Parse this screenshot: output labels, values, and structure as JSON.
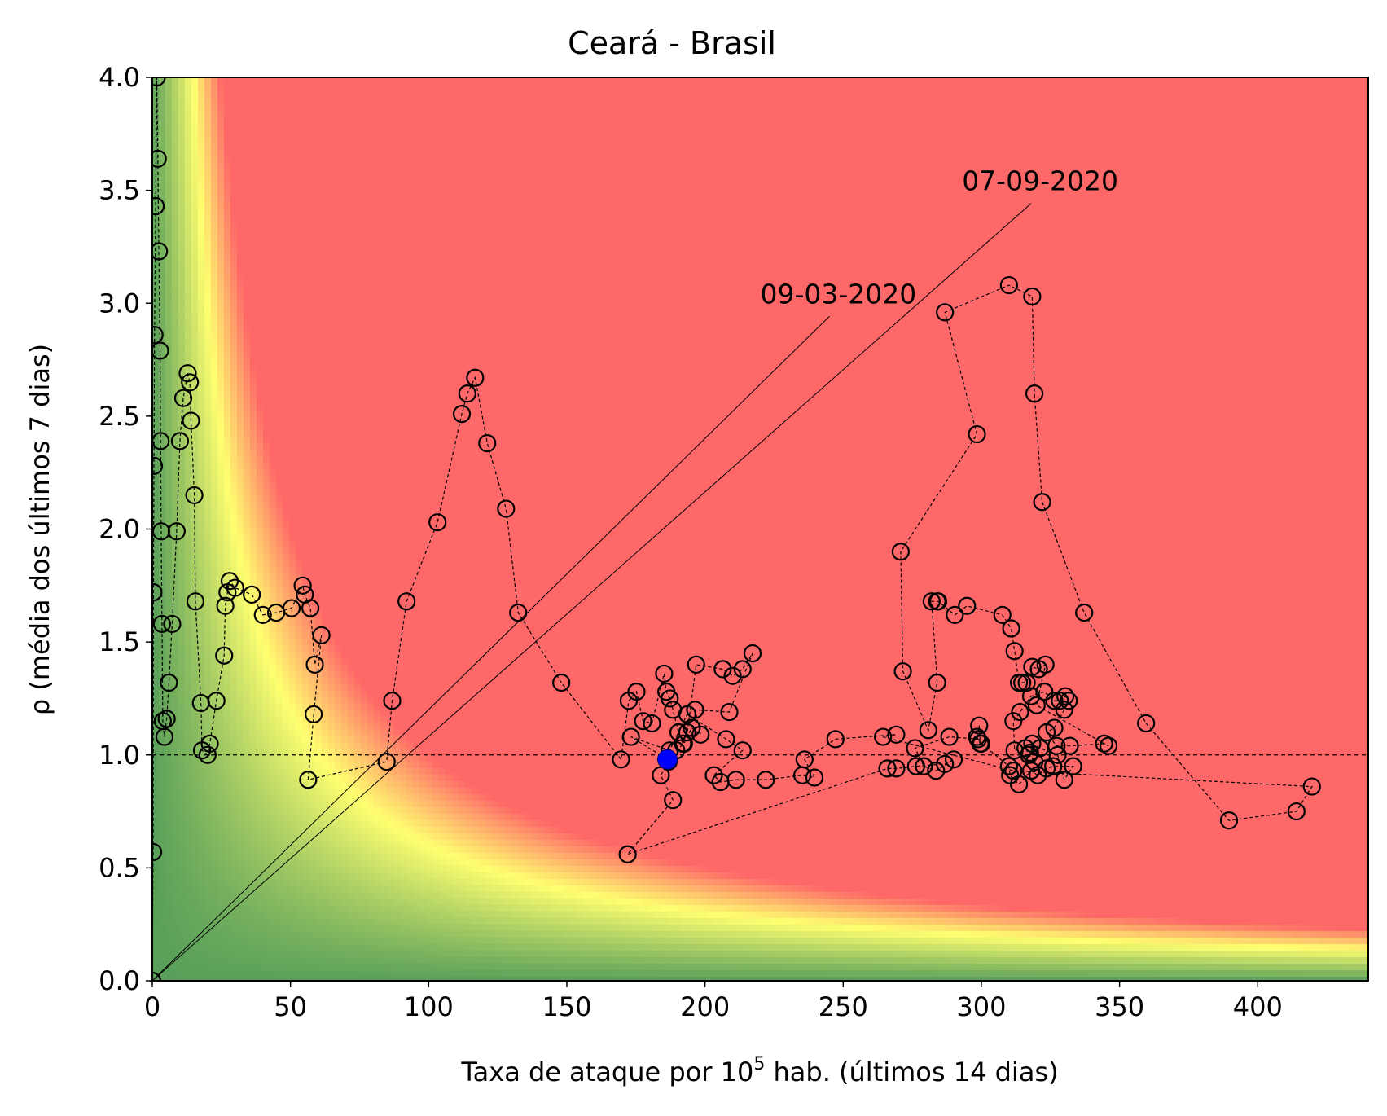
{
  "chart_data": {
    "type": "scatter",
    "title": "Ceará - Brasil",
    "xlabel": "Taxa de ataque por 10",
    "xlabel_sup": "5",
    "xlabel_suffix": " hab. (últimos 14 dias)",
    "ylabel": "ρ (média dos últimos 7 dias)",
    "xlim": [
      0,
      440
    ],
    "ylim": [
      0,
      4.0
    ],
    "x_ticks": [
      0,
      50,
      100,
      150,
      200,
      250,
      300,
      350,
      400
    ],
    "x_tick_labels": [
      "0",
      "50",
      "100",
      "150",
      "200",
      "250",
      "300",
      "350",
      "400"
    ],
    "y_ticks": [
      0,
      0.5,
      1.0,
      1.5,
      2.0,
      2.5,
      3.0,
      3.5,
      4.0
    ],
    "y_tick_labels": [
      "0.0",
      "0.5",
      "1.0",
      "1.5",
      "2.0",
      "2.5",
      "3.0",
      "3.5",
      "4.0"
    ],
    "reference_line_y": 1.0,
    "background": {
      "description_colors": [
        "#5aa05a",
        "#ffff70",
        "#ff6868"
      ],
      "risk_product_thresholds": [
        0,
        60,
        100
      ]
    },
    "colors": {
      "marker_edge": "#000000",
      "last_point": "#0000ff",
      "path": "#000000"
    },
    "grid": false,
    "series": [
      {
        "values": [
          [
            0.0,
            0.0
          ],
          [
            0.3,
            0.57
          ],
          [
            0.4,
            1.72
          ],
          [
            0.6,
            2.28
          ],
          [
            0.8,
            2.86
          ],
          [
            1.2,
            3.43
          ],
          [
            1.6,
            4.0
          ],
          [
            2.0,
            3.64
          ],
          [
            2.4,
            3.23
          ],
          [
            2.8,
            2.79
          ],
          [
            3.0,
            2.39
          ],
          [
            3.2,
            1.99
          ],
          [
            3.5,
            1.58
          ],
          [
            3.8,
            1.15
          ],
          [
            4.4,
            1.08
          ],
          [
            5.2,
            1.16
          ],
          [
            6.0,
            1.32
          ],
          [
            7.2,
            1.58
          ],
          [
            8.8,
            1.99
          ],
          [
            10.0,
            2.39
          ],
          [
            11.2,
            2.58
          ],
          [
            12.8,
            2.69
          ],
          [
            13.6,
            2.65
          ],
          [
            14.0,
            2.48
          ],
          [
            15.2,
            2.15
          ],
          [
            15.6,
            1.68
          ],
          [
            17.6,
            1.23
          ],
          [
            18.0,
            1.02
          ],
          [
            20.0,
            1.0
          ],
          [
            20.8,
            1.05
          ],
          [
            23.2,
            1.24
          ],
          [
            26.0,
            1.44
          ],
          [
            26.4,
            1.66
          ],
          [
            27.2,
            1.72
          ],
          [
            28.0,
            1.77
          ],
          [
            30.0,
            1.74
          ],
          [
            36.0,
            1.71
          ],
          [
            40.0,
            1.62
          ],
          [
            44.8,
            1.63
          ],
          [
            50.4,
            1.65
          ],
          [
            54.4,
            1.75
          ],
          [
            55.2,
            1.71
          ],
          [
            57.2,
            1.65
          ],
          [
            58.8,
            1.4
          ],
          [
            61.2,
            1.53
          ],
          [
            58.4,
            1.18
          ],
          [
            56.4,
            0.89
          ],
          [
            84.8,
            0.97
          ],
          [
            86.8,
            1.24
          ],
          [
            92.0,
            1.68
          ],
          [
            103.2,
            2.03
          ],
          [
            112.0,
            2.51
          ],
          [
            114.0,
            2.6
          ],
          [
            116.8,
            2.67
          ],
          [
            121.2,
            2.38
          ],
          [
            128.0,
            2.09
          ],
          [
            132.4,
            1.63
          ],
          [
            148.0,
            1.32
          ],
          [
            169.6,
            0.98
          ],
          [
            172.4,
            1.24
          ],
          [
            175.2,
            1.28
          ],
          [
            177.6,
            1.15
          ],
          [
            180.8,
            1.14
          ],
          [
            185.2,
            1.36
          ],
          [
            186.0,
            1.28
          ],
          [
            187.2,
            1.25
          ],
          [
            188.4,
            1.2
          ],
          [
            190.4,
            1.1
          ],
          [
            192.0,
            1.05
          ],
          [
            193.6,
            1.1
          ],
          [
            196.8,
            1.4
          ],
          [
            206.4,
            1.38
          ],
          [
            210.0,
            1.35
          ],
          [
            213.6,
            1.38
          ],
          [
            217.2,
            1.45
          ],
          [
            208.8,
            1.19
          ],
          [
            196.4,
            1.2
          ],
          [
            198.4,
            1.09
          ],
          [
            195.2,
            1.12
          ],
          [
            192.4,
            1.05
          ],
          [
            189.6,
            1.02
          ],
          [
            186.8,
            0.97
          ],
          [
            184.0,
            0.91
          ],
          [
            188.4,
            0.8
          ],
          [
            172.0,
            0.56
          ],
          [
            266.0,
            0.94
          ],
          [
            269.2,
            0.94
          ],
          [
            276.4,
            0.95
          ],
          [
            286.8,
            0.96
          ],
          [
            290.0,
            0.98
          ],
          [
            283.6,
            0.93
          ],
          [
            279.2,
            0.95
          ],
          [
            276.0,
            1.03
          ],
          [
            288.4,
            1.08
          ],
          [
            298.8,
            1.07
          ],
          [
            299.2,
            1.13
          ],
          [
            299.6,
            1.05
          ],
          [
            298.4,
            1.08
          ],
          [
            300.0,
            1.05
          ],
          [
            310.0,
            0.95
          ],
          [
            310.4,
            0.91
          ],
          [
            313.6,
            0.87
          ],
          [
            318.0,
            0.93
          ],
          [
            320.4,
            0.91
          ],
          [
            323.6,
            0.94
          ],
          [
            326.0,
            0.95
          ],
          [
            333.2,
            0.95
          ],
          [
            330.0,
            0.89
          ],
          [
            327.6,
            1.0
          ],
          [
            321.2,
            1.03
          ],
          [
            318.4,
            1.05
          ],
          [
            317.6,
            1.01
          ],
          [
            319.2,
            0.97
          ],
          [
            317.2,
            1.0
          ],
          [
            316.0,
            1.03
          ],
          [
            312.0,
            1.02
          ],
          [
            311.6,
            1.15
          ],
          [
            314.0,
            1.19
          ],
          [
            318.0,
            1.26
          ],
          [
            322.8,
            1.28
          ],
          [
            326.4,
            1.24
          ],
          [
            328.4,
            1.24
          ],
          [
            330.4,
            1.26
          ],
          [
            331.6,
            1.24
          ],
          [
            330.0,
            1.2
          ],
          [
            326.4,
            1.12
          ],
          [
            323.6,
            1.1
          ],
          [
            327.2,
            1.04
          ],
          [
            332.0,
            1.04
          ],
          [
            344.4,
            1.05
          ],
          [
            346.0,
            1.04
          ],
          [
            320.0,
            1.22
          ],
          [
            323.2,
            1.4
          ],
          [
            320.8,
            1.38
          ],
          [
            318.4,
            1.39
          ],
          [
            316.4,
            1.32
          ],
          [
            314.8,
            1.32
          ],
          [
            313.6,
            1.32
          ],
          [
            312.0,
            1.46
          ],
          [
            310.8,
            1.56
          ],
          [
            307.6,
            1.62
          ],
          [
            294.8,
            1.66
          ],
          [
            290.4,
            1.62
          ],
          [
            284.4,
            1.68
          ],
          [
            284.0,
            1.68
          ],
          [
            282.0,
            1.68
          ],
          [
            284.0,
            1.32
          ],
          [
            280.8,
            1.11
          ],
          [
            271.6,
            1.37
          ],
          [
            270.8,
            1.9
          ],
          [
            298.4,
            2.42
          ],
          [
            286.8,
            2.96
          ],
          [
            310.0,
            3.08
          ],
          [
            318.4,
            3.03
          ],
          [
            319.2,
            2.6
          ],
          [
            322.0,
            2.12
          ],
          [
            337.2,
            1.63
          ],
          [
            359.6,
            1.14
          ],
          [
            389.6,
            0.71
          ],
          [
            414.0,
            0.75
          ],
          [
            419.6,
            0.86
          ],
          [
            311.6,
            0.93
          ],
          [
            264.4,
            1.08
          ],
          [
            269.2,
            1.09
          ],
          [
            247.2,
            1.07
          ],
          [
            236.0,
            0.98
          ],
          [
            239.6,
            0.9
          ],
          [
            235.2,
            0.91
          ],
          [
            222.0,
            0.89
          ],
          [
            211.2,
            0.89
          ],
          [
            205.6,
            0.88
          ],
          [
            203.2,
            0.91
          ],
          [
            213.6,
            1.02
          ],
          [
            207.6,
            1.07
          ],
          [
            193.6,
            1.18
          ],
          [
            187.2,
            1.02
          ],
          [
            173.2,
            1.08
          ],
          [
            186.4,
            0.98
          ]
        ]
      }
    ],
    "last_point": [
      186.4,
      0.98
    ],
    "annotations": [
      {
        "text": "09-03-2020",
        "target": [
          0.0,
          0.0
        ],
        "label_pos": [
          220,
          3.0
        ]
      },
      {
        "text": "07-09-2020",
        "target": [
          0.0,
          0.0
        ],
        "label_pos": [
          293,
          3.5
        ]
      }
    ]
  }
}
